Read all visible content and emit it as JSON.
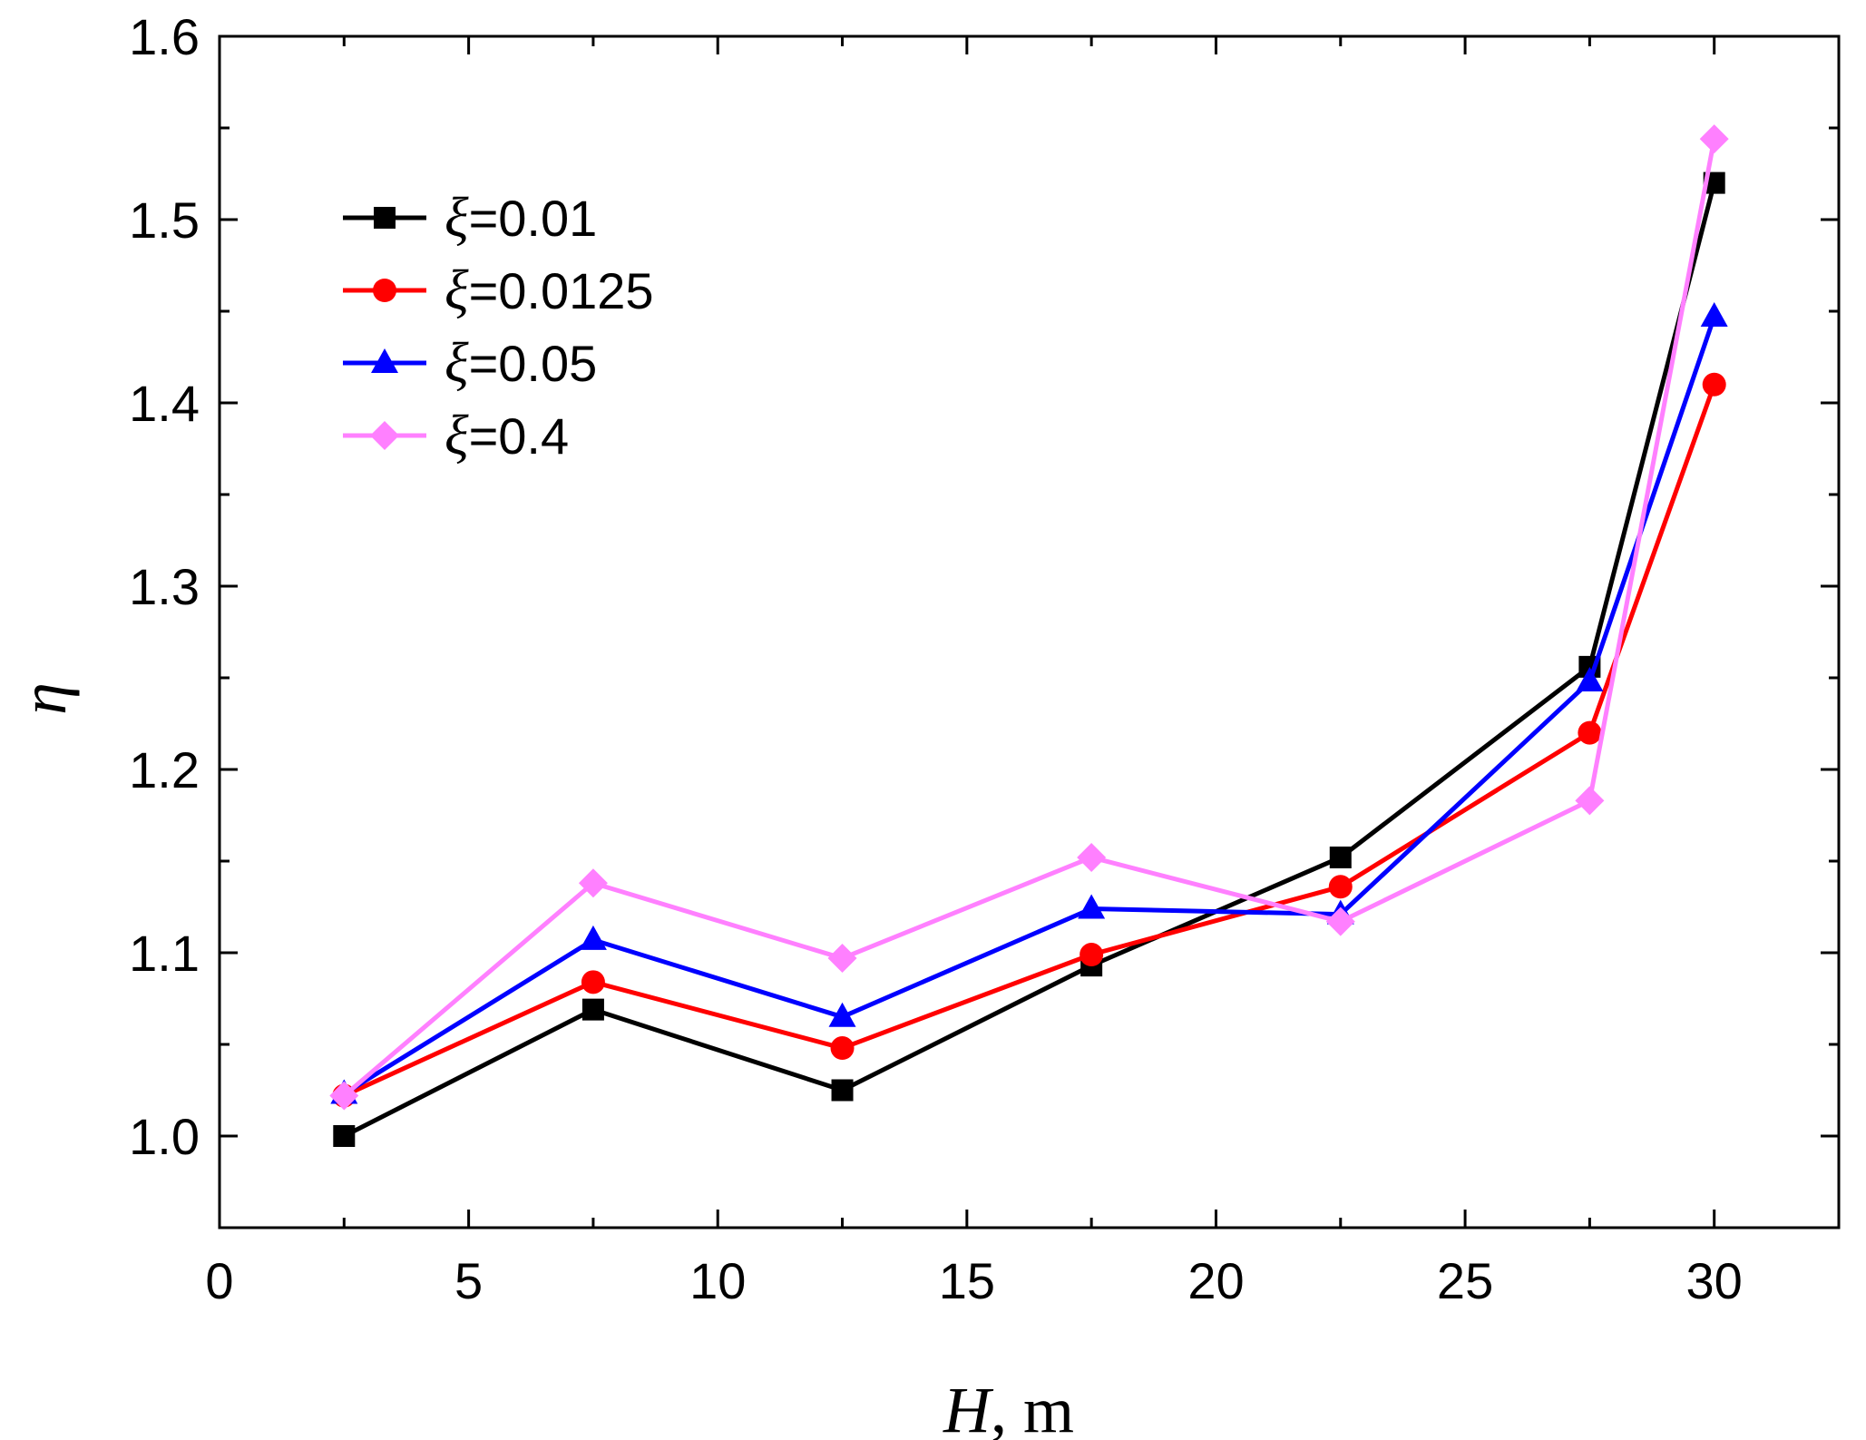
{
  "chart_data": {
    "type": "line",
    "title": "",
    "xlabel": "H",
    "xlabel_unit": ", m",
    "ylabel": "η",
    "xlim": [
      0,
      32.5
    ],
    "ylim": [
      0.95,
      1.6
    ],
    "xticks": [
      0,
      5,
      10,
      15,
      20,
      25,
      30
    ],
    "yticks": [
      1.0,
      1.1,
      1.2,
      1.3,
      1.4,
      1.5,
      1.6
    ],
    "xtick_labels": [
      "0",
      "5",
      "10",
      "15",
      "20",
      "25",
      "30"
    ],
    "ytick_labels": [
      "1.0",
      "1.1",
      "1.2",
      "1.3",
      "1.4",
      "1.5",
      "1.6"
    ],
    "legend_position": "top-left",
    "x": [
      2.5,
      7.5,
      12.5,
      17.5,
      22.5,
      27.5,
      30
    ],
    "series": [
      {
        "name": "ξ=0.01",
        "symbol": "ξ",
        "value_label": "=0.01",
        "color": "#000000",
        "marker": "square",
        "values": [
          1.0,
          1.069,
          1.025,
          1.093,
          1.152,
          1.256,
          1.52
        ]
      },
      {
        "name": "ξ=0.0125",
        "symbol": "ξ",
        "value_label": "=0.0125",
        "color": "#ff0000",
        "marker": "circle",
        "values": [
          1.022,
          1.084,
          1.048,
          1.099,
          1.136,
          1.22,
          1.41
        ]
      },
      {
        "name": "ξ=0.05",
        "symbol": "ξ",
        "value_label": "=0.05",
        "color": "#0000ff",
        "marker": "triangle",
        "values": [
          1.023,
          1.107,
          1.065,
          1.124,
          1.121,
          1.248,
          1.447
        ]
      },
      {
        "name": "ξ=0.4",
        "symbol": "ξ",
        "value_label": "=0.4",
        "color": "#ff80ff",
        "marker": "diamond",
        "values": [
          1.022,
          1.138,
          1.097,
          1.152,
          1.117,
          1.183,
          1.544
        ]
      }
    ]
  }
}
